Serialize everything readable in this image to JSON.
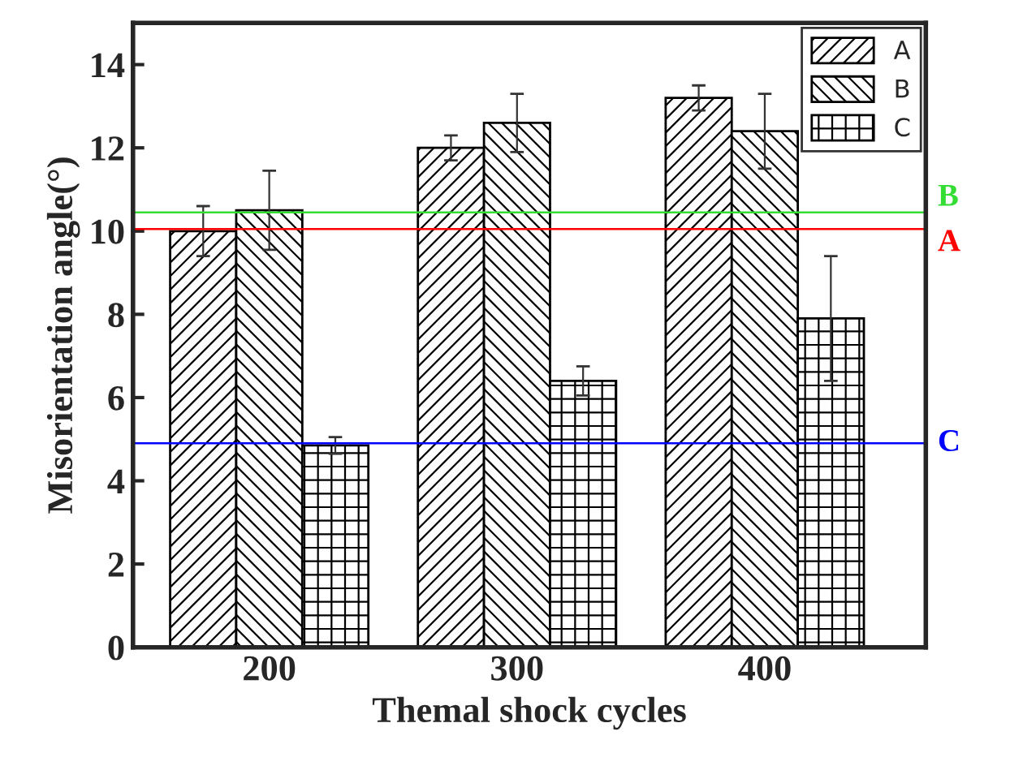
{
  "chart_data": {
    "type": "bar",
    "xlabel": "Themal shock cycles",
    "ylabel": "Misorientation angle(°)",
    "categories": [
      "200",
      "300",
      "400"
    ],
    "series": [
      {
        "name": "A",
        "color": "#000000",
        "values": [
          10.0,
          12.0,
          13.2
        ],
        "errors": [
          0.6,
          0.3,
          0.3
        ]
      },
      {
        "name": "B",
        "color": "#000000",
        "values": [
          10.5,
          12.6,
          12.4
        ],
        "errors": [
          0.95,
          0.7,
          0.9
        ]
      },
      {
        "name": "C",
        "color": "#000000",
        "values": [
          4.85,
          6.4,
          7.9
        ],
        "errors": [
          0.2,
          0.35,
          1.5
        ]
      }
    ],
    "ylim": [
      0,
      15
    ],
    "yticks": [
      0,
      2,
      4,
      6,
      8,
      10,
      12,
      14
    ],
    "grid": false,
    "legend": "top right",
    "ref_lines": [
      {
        "axis": "y",
        "value": 10.45,
        "label": "B",
        "color": "#33dd33"
      },
      {
        "axis": "y",
        "value": 10.05,
        "label": "A",
        "color": "#ff0000"
      },
      {
        "axis": "y",
        "value": 4.9,
        "label": "C",
        "color": "#0000ff"
      }
    ]
  }
}
